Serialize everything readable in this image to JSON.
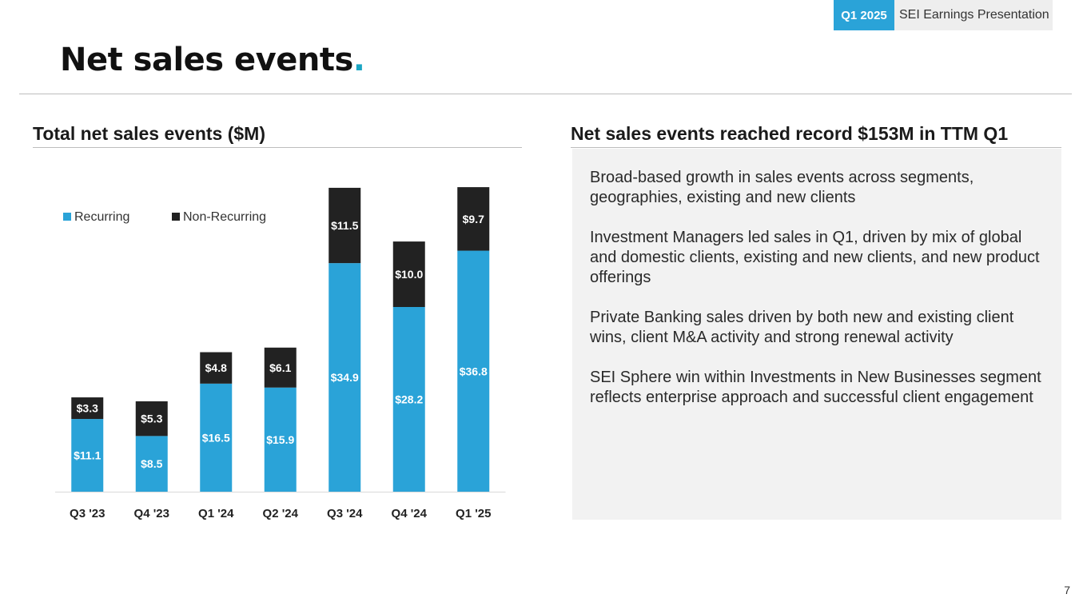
{
  "header": {
    "quarter_tag": "Q1 2025",
    "presentation_label": "SEI Earnings Presentation",
    "title": "Net sales events",
    "title_dot": "."
  },
  "left": {
    "heading": "Total net sales events ($M)"
  },
  "right": {
    "heading": "Net sales events reached record $153M in TTM Q1",
    "paragraphs": [
      "Broad-based growth in sales events across segments, geographies, existing and new clients",
      "Investment Managers led sales in Q1, driven by mix of global and domestic clients, existing and new clients, and new product offerings",
      "Private Banking sales driven by both new and existing client wins, client M&A activity and strong renewal activity",
      "SEI Sphere win within Investments in New Businesses segment reflects enterprise approach and successful client engagement"
    ]
  },
  "page_number": "7",
  "colors": {
    "recurring": "#2AA3D8",
    "non_recurring": "#222222",
    "accent": "#1AA6C4"
  },
  "chart_data": {
    "type": "bar",
    "stacked": true,
    "title": "Total net sales events ($M)",
    "categories": [
      "Q3 '23",
      "Q4 '23",
      "Q1 '24",
      "Q2 '24",
      "Q3 '24",
      "Q4 '24",
      "Q1 '25"
    ],
    "series": [
      {
        "name": "Recurring",
        "values": [
          11.1,
          8.5,
          16.5,
          15.9,
          34.9,
          28.2,
          36.8
        ],
        "labels": [
          "$11.1",
          "$8.5",
          "$16.5",
          "$15.9",
          "$34.9",
          "$28.2",
          "$36.8"
        ]
      },
      {
        "name": "Non-Recurring",
        "values": [
          3.3,
          5.3,
          4.8,
          6.1,
          11.5,
          10.0,
          9.7
        ],
        "labels": [
          "$3.3",
          "$5.3",
          "$4.8",
          "$6.1",
          "$11.5",
          "$10.0",
          "$9.7"
        ]
      }
    ],
    "legend_position": "top-left",
    "xlabel": "",
    "ylabel": "",
    "ylim": [
      0,
      47
    ],
    "grid": false
  }
}
